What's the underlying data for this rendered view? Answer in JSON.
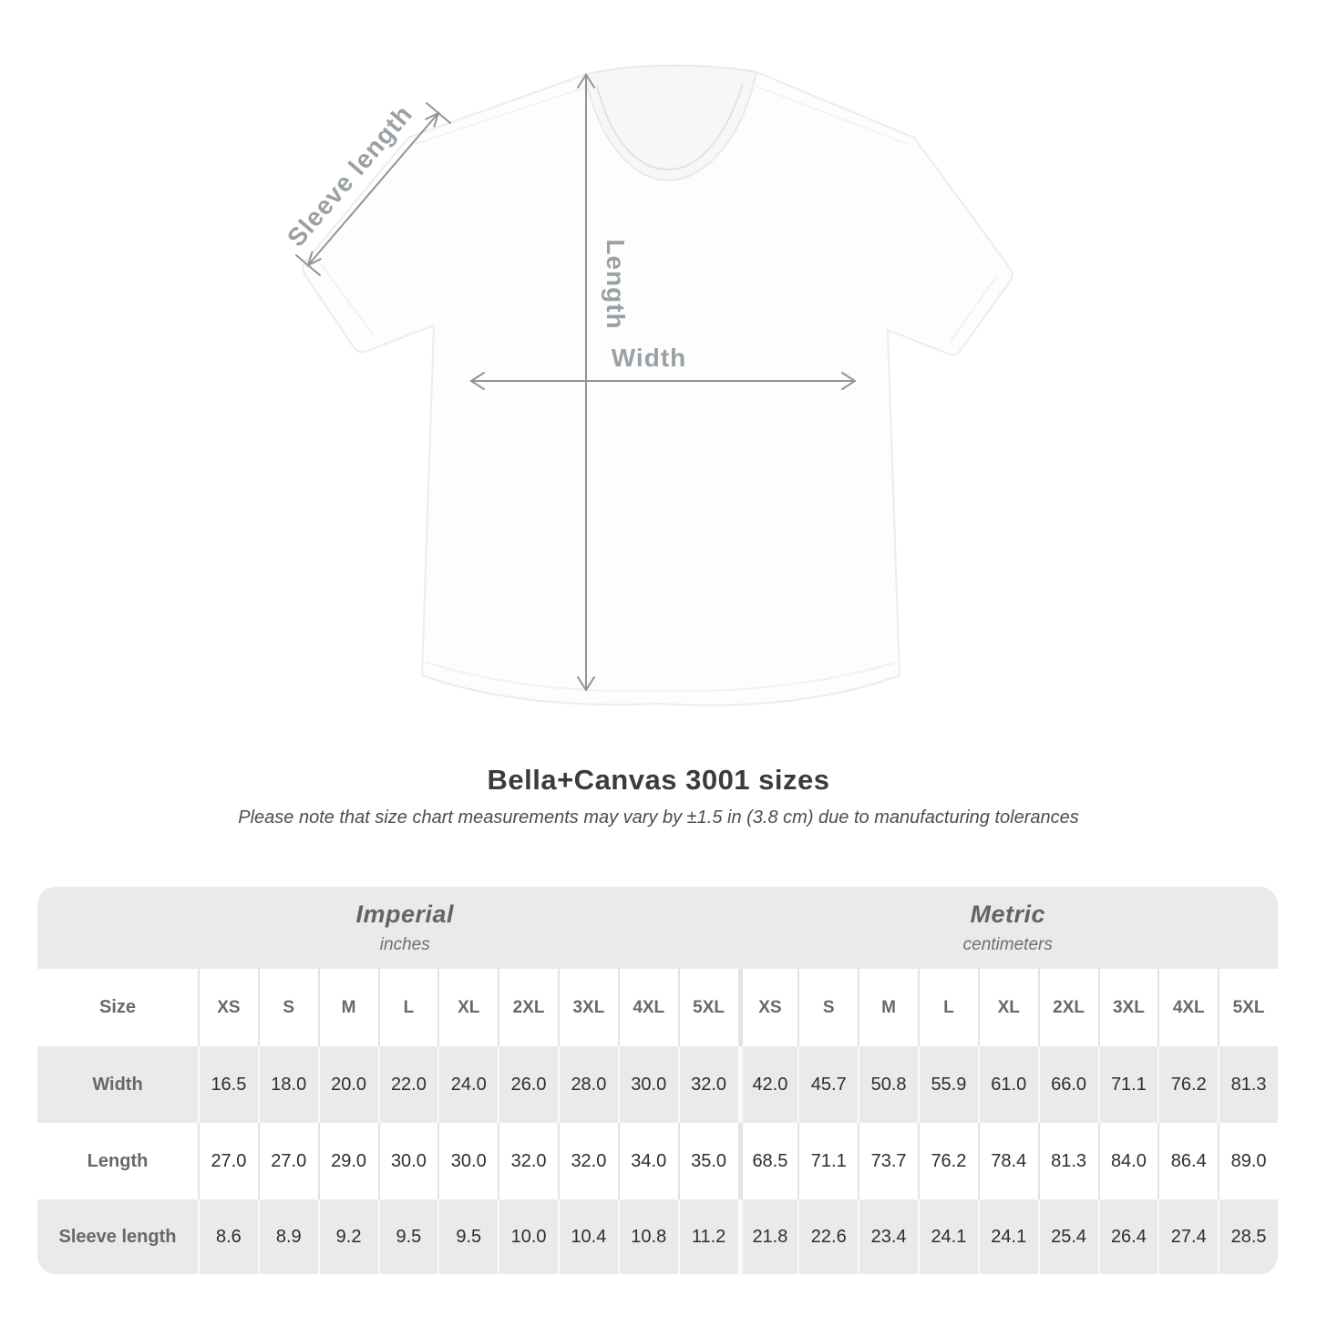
{
  "figure": {
    "labels": {
      "sleeve_length": "Sleeve length",
      "length": "Length",
      "width": "Width"
    },
    "colors": {
      "annotation_text": "#9aa0a4",
      "arrow": "#8f9598",
      "shirt_fill": "#fdfdfd",
      "shirt_outline": "#ececec"
    }
  },
  "heading": {
    "title": "Bella+Canvas 3001 sizes",
    "note": "Please note that size chart measurements may vary by ±1.5 in (3.8 cm) due to manufacturing tolerances"
  },
  "table": {
    "size_label": "Size",
    "sizes": [
      "XS",
      "S",
      "M",
      "L",
      "XL",
      "2XL",
      "3XL",
      "4XL",
      "5XL"
    ],
    "sections": [
      {
        "name": "Imperial",
        "unit": "inches"
      },
      {
        "name": "Metric",
        "unit": "centimeters"
      }
    ],
    "rows": [
      {
        "label": "Width",
        "imperial": [
          "16.5",
          "18.0",
          "20.0",
          "22.0",
          "24.0",
          "26.0",
          "28.0",
          "30.0",
          "32.0"
        ],
        "metric": [
          "42.0",
          "45.7",
          "50.8",
          "55.9",
          "61.0",
          "66.0",
          "71.1",
          "76.2",
          "81.3"
        ]
      },
      {
        "label": "Length",
        "imperial": [
          "27.0",
          "27.0",
          "29.0",
          "30.0",
          "30.0",
          "32.0",
          "32.0",
          "34.0",
          "35.0"
        ],
        "metric": [
          "68.5",
          "71.1",
          "73.7",
          "76.2",
          "78.4",
          "81.3",
          "84.0",
          "86.4",
          "89.0"
        ]
      },
      {
        "label": "Sleeve length",
        "imperial": [
          "8.6",
          "8.9",
          "9.2",
          "9.5",
          "9.5",
          "10.0",
          "10.4",
          "10.8",
          "11.2"
        ],
        "metric": [
          "21.8",
          "22.6",
          "23.4",
          "24.1",
          "24.1",
          "25.4",
          "26.4",
          "27.4",
          "28.5"
        ]
      }
    ],
    "colors": {
      "band_gray": "#eaeaea",
      "label_text": "#64696c",
      "value_text": "#2c2e2f"
    }
  },
  "chart_data": {
    "type": "table",
    "title": "Bella+Canvas 3001 sizes",
    "note": "Please note that size chart measurements may vary by ±1.5 in (3.8 cm) due to manufacturing tolerances",
    "column_groups": [
      "Imperial (inches)",
      "Metric (centimeters)"
    ],
    "columns": [
      "XS",
      "S",
      "M",
      "L",
      "XL",
      "2XL",
      "3XL",
      "4XL",
      "5XL"
    ],
    "rows": [
      {
        "measure": "Width",
        "imperial": [
          16.5,
          18.0,
          20.0,
          22.0,
          24.0,
          26.0,
          28.0,
          30.0,
          32.0
        ],
        "metric": [
          42.0,
          45.7,
          50.8,
          55.9,
          61.0,
          66.0,
          71.1,
          76.2,
          81.3
        ]
      },
      {
        "measure": "Length",
        "imperial": [
          27.0,
          27.0,
          29.0,
          30.0,
          30.0,
          32.0,
          32.0,
          34.0,
          35.0
        ],
        "metric": [
          68.5,
          71.1,
          73.7,
          76.2,
          78.4,
          81.3,
          84.0,
          86.4,
          89.0
        ]
      },
      {
        "measure": "Sleeve length",
        "imperial": [
          8.6,
          8.9,
          9.2,
          9.5,
          9.5,
          10.0,
          10.4,
          10.8,
          11.2
        ],
        "metric": [
          21.8,
          22.6,
          23.4,
          24.1,
          24.1,
          25.4,
          26.4,
          27.4,
          28.5
        ]
      }
    ]
  }
}
